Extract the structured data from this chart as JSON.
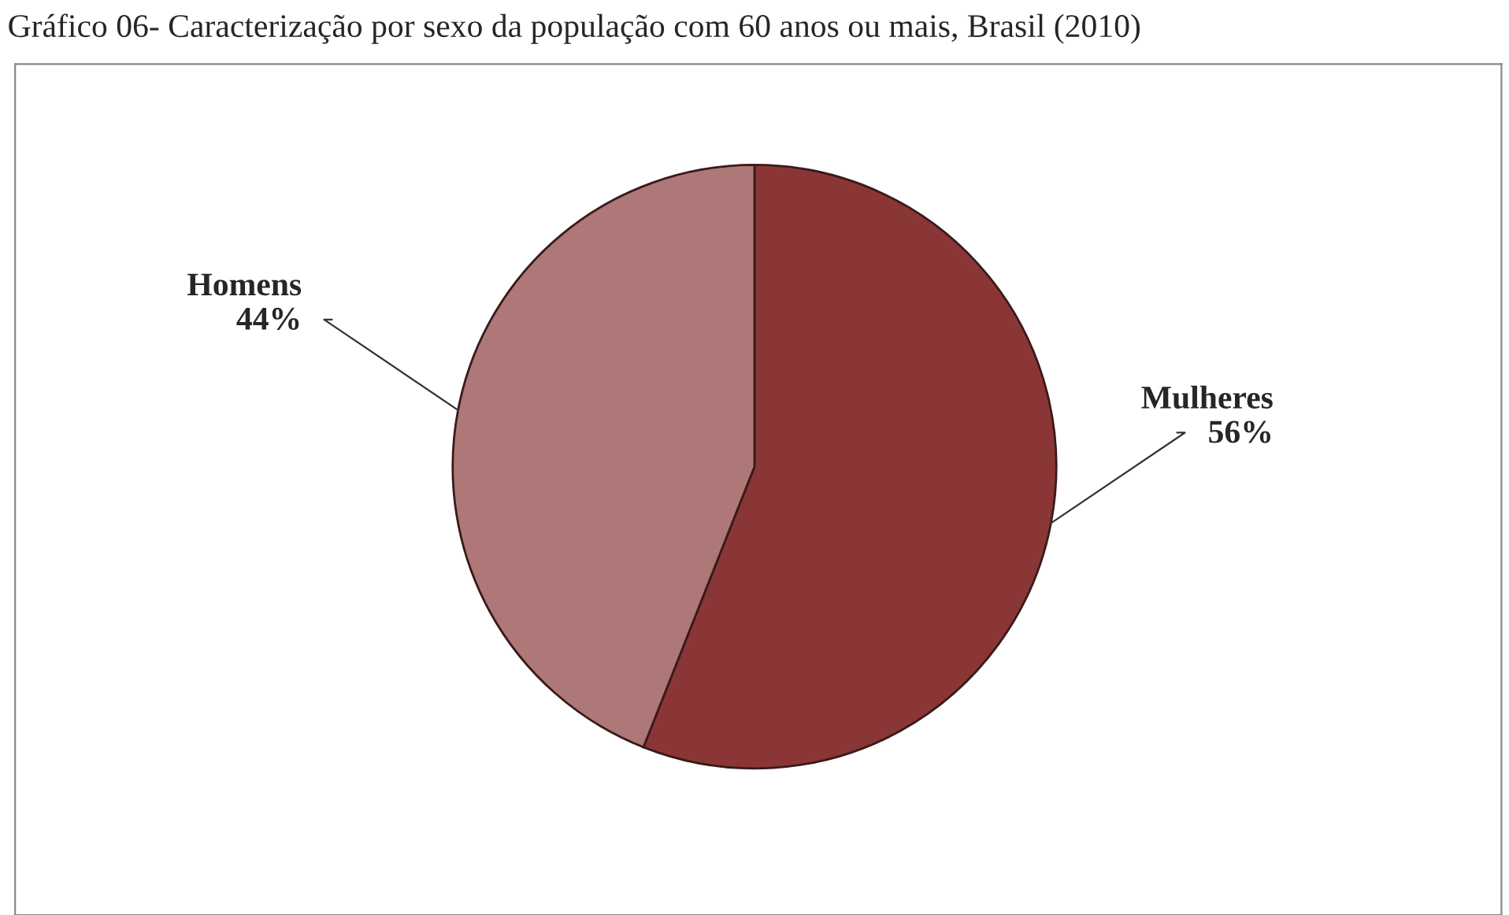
{
  "chart_data": {
    "type": "pie",
    "title": "Gráfico 06- Caracterização por sexo da população com 60 anos ou mais, Brasil (2010)",
    "categories": [
      "Mulheres",
      "Homens"
    ],
    "values": [
      56,
      44
    ],
    "colors": [
      "#8b3636",
      "#ae7878"
    ],
    "value_labels": [
      "56%",
      "44%"
    ],
    "legend": false
  }
}
